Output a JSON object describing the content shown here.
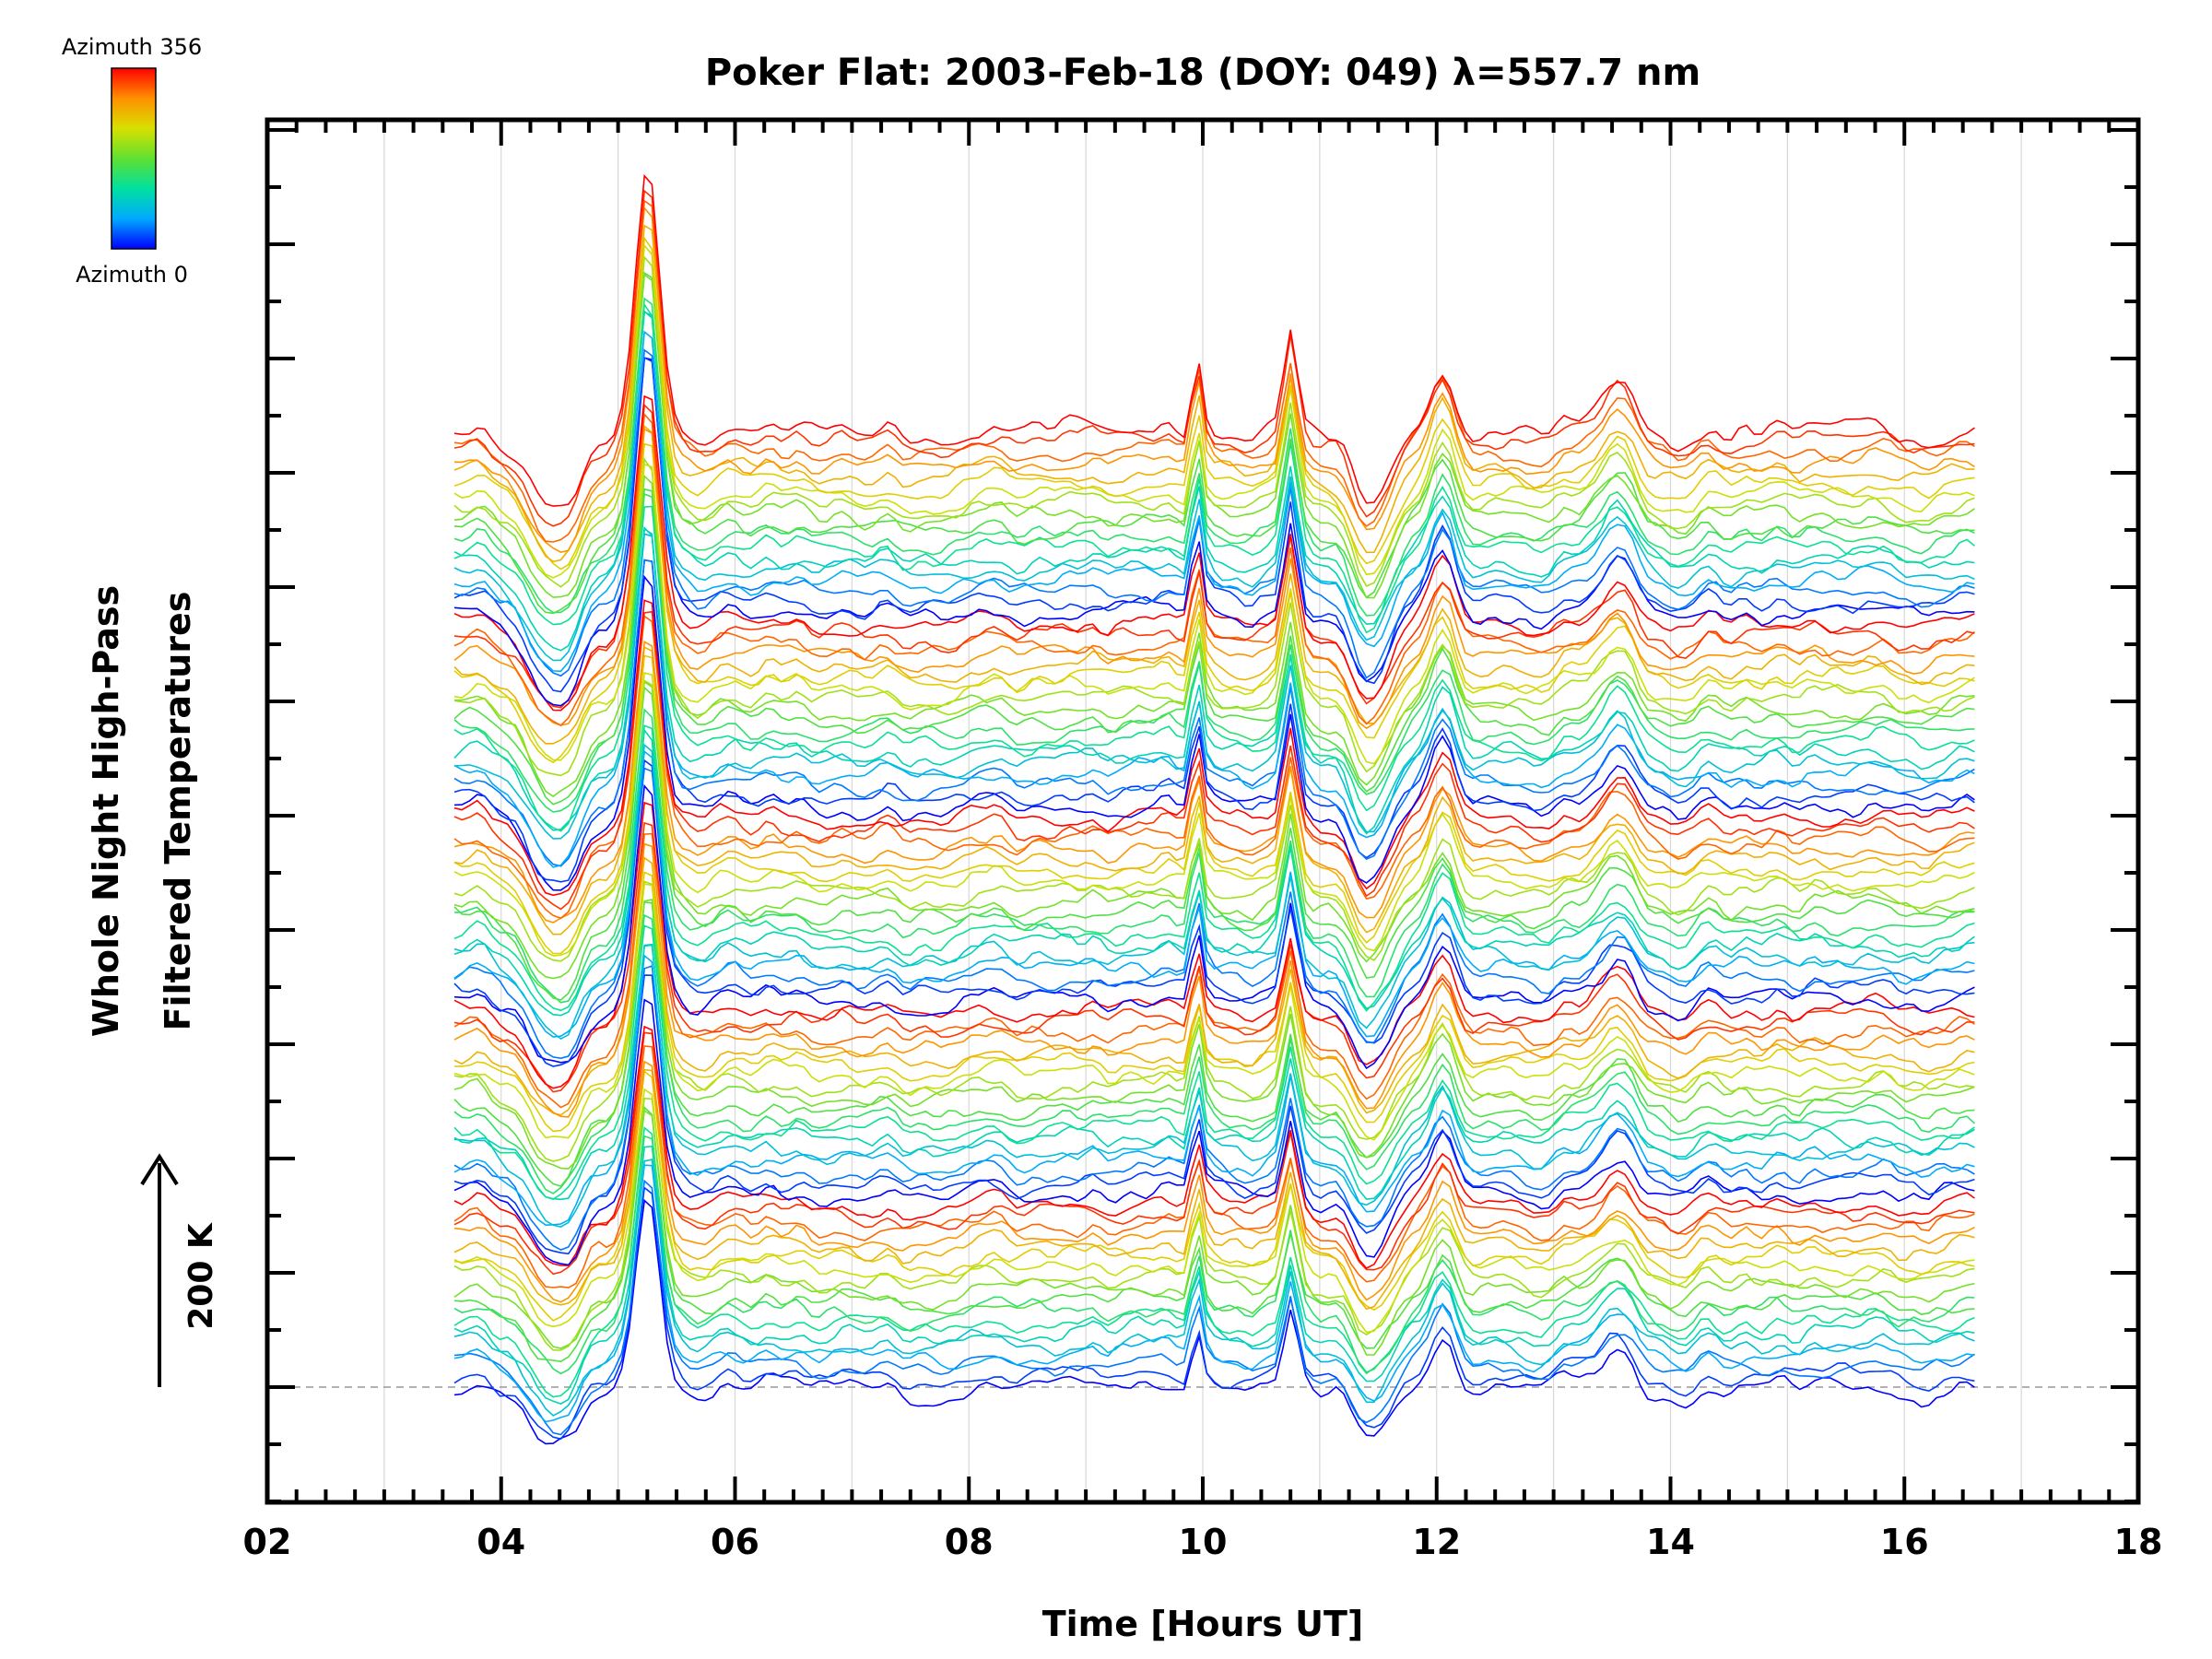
{
  "chart_data": {
    "type": "line",
    "title": "Poker Flat: 2003-Feb-18 (DOY: 049) λ=557.7 nm",
    "xlabel": "Time [Hours UT]",
    "ylabel": [
      "Whole Night High-Pass",
      "Filtered Temperatures"
    ],
    "xlim": [
      2,
      18
    ],
    "x_ticks": [
      "02",
      "04",
      "06",
      "08",
      "10",
      "12",
      "14",
      "16",
      "18"
    ],
    "x_tick_values": [
      2,
      4,
      6,
      8,
      10,
      12,
      14,
      16,
      18
    ],
    "x_range_data": [
      3.6,
      16.6
    ],
    "grid": {
      "vertical": true,
      "every_hours": 1
    },
    "baseline_dashed": true,
    "series_count": 90,
    "stack_offset_K": 20,
    "colorbar": {
      "top_label": "Azimuth 356",
      "bottom_label": "Azimuth 0",
      "placement": "top-left",
      "colors": [
        "#0000ff",
        "#00aaff",
        "#00e0a0",
        "#60e030",
        "#d8e000",
        "#ff9000",
        "#ff0000"
      ]
    },
    "scale_bar": {
      "label": "200 K",
      "value_K": 200
    },
    "feature_times_hours": [
      5.25,
      9.95,
      10.75,
      11.4,
      12.05,
      13.55
    ],
    "feature_widths_hours": [
      0.14,
      0.06,
      0.08,
      0.2,
      0.14,
      0.18
    ],
    "feature_amplitudes_K": [
      170,
      50,
      65,
      -55,
      40,
      35
    ]
  }
}
